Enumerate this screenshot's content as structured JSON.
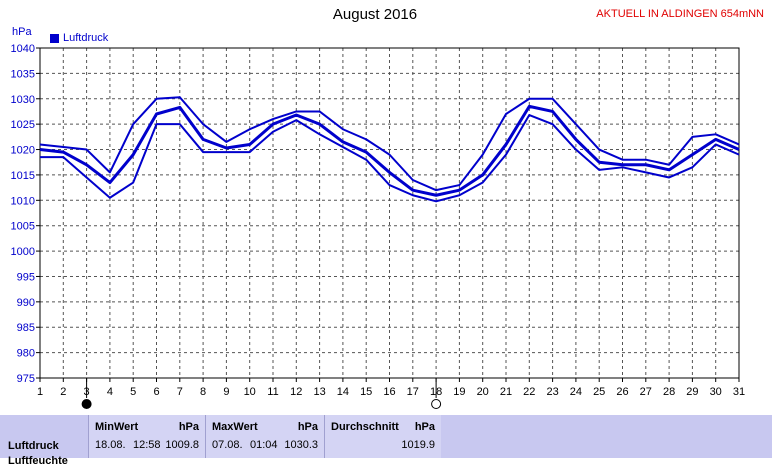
{
  "header": {
    "title": "August 2016",
    "status": "AKTUELL IN ALDINGEN 654mNN",
    "unit": "hPa",
    "legend_label": "Luftdruck"
  },
  "chart_data": {
    "type": "line",
    "title": "August 2016",
    "ylabel": "hPa",
    "xlim": [
      1,
      31
    ],
    "ylim": [
      975,
      1040
    ],
    "grid": true,
    "legend": "top-left",
    "x": [
      1,
      2,
      3,
      4,
      5,
      6,
      7,
      8,
      9,
      10,
      11,
      12,
      13,
      14,
      15,
      16,
      17,
      18,
      19,
      20,
      21,
      22,
      23,
      24,
      25,
      26,
      27,
      28,
      29,
      30,
      31
    ],
    "xticks": [
      "1",
      "2",
      "3",
      "4",
      "5",
      "6",
      "7",
      "8",
      "9",
      "10",
      "11",
      "12",
      "13",
      "14",
      "15",
      "16",
      "17",
      "18",
      "19",
      "20",
      "21",
      "22",
      "23",
      "24",
      "25",
      "26",
      "27",
      "28",
      "29",
      "30",
      "31"
    ],
    "yticks": [
      "975",
      "980",
      "985",
      "990",
      "995",
      "1000",
      "1005",
      "1010",
      "1015",
      "1020",
      "1025",
      "1030",
      "1035",
      "1040"
    ],
    "series": [
      {
        "name": "Luftdruck",
        "role": "max",
        "values": [
          1021,
          1020.5,
          1020,
          1015.5,
          1025,
          1030,
          1030.3,
          1025,
          1021.5,
          1024,
          1026,
          1027.5,
          1027.5,
          1024,
          1022,
          1019,
          1014,
          1012,
          1013,
          1019,
          1027,
          1030,
          1030,
          1025,
          1020,
          1018,
          1018,
          1017,
          1022.5,
          1023,
          1021
        ]
      },
      {
        "name": "Luftdruck",
        "role": "mean",
        "values": [
          1020,
          1019.5,
          1017,
          1013.5,
          1019,
          1027,
          1028.3,
          1022,
          1020.3,
          1021,
          1025,
          1026.8,
          1025,
          1021.5,
          1019.5,
          1015.5,
          1012,
          1011,
          1012,
          1015,
          1021,
          1028.5,
          1027.5,
          1022,
          1017.5,
          1017,
          1017,
          1016,
          1019,
          1022,
          1020
        ]
      },
      {
        "name": "Luftdruck",
        "role": "min",
        "values": [
          1018.5,
          1018.5,
          1014.5,
          1010.5,
          1013.5,
          1025,
          1025,
          1019.5,
          1019.5,
          1019.5,
          1023.5,
          1025.8,
          1023,
          1020.5,
          1018,
          1013,
          1011,
          1009.8,
          1011,
          1013.5,
          1019,
          1026.8,
          1025,
          1020,
          1016,
          1016.5,
          1015.5,
          1014.5,
          1016.5,
          1021,
          1019
        ]
      }
    ],
    "markers": [
      {
        "x": 3,
        "type": "new-moon"
      },
      {
        "x": 18,
        "type": "full-moon"
      }
    ],
    "colors": {
      "line": "#0000cc",
      "grid": "#555555",
      "axis": "#000000"
    }
  },
  "footer": {
    "row_label": "Luftdruck",
    "row_label_2": "Luftfeuchte",
    "min": {
      "label": "MinWert",
      "unit": "hPa",
      "date": "18.08.",
      "time": "12:58",
      "value": "1009.8"
    },
    "max": {
      "label": "MaxWert",
      "unit": "hPa",
      "date": "07.08.",
      "time": "01:04",
      "value": "1030.3"
    },
    "avg": {
      "label": "Durchschnitt",
      "unit": "hPa",
      "value": "1019.9"
    }
  }
}
